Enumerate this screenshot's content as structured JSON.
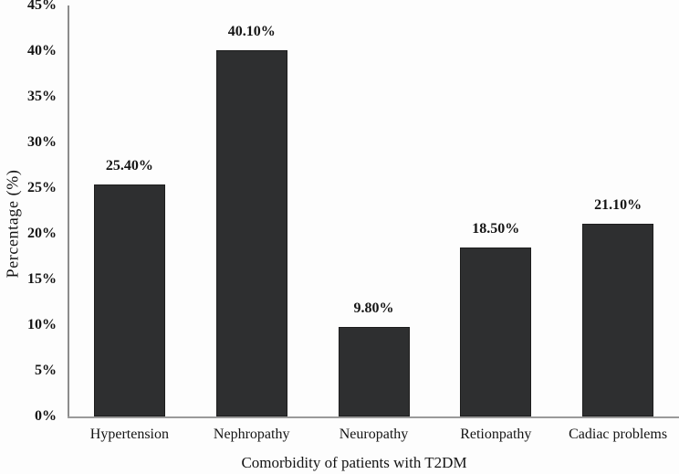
{
  "chart_data": {
    "type": "bar",
    "categories": [
      "Hypertension",
      "Nephropathy",
      "Neuropathy",
      "Retionpathy",
      "Cadiac problems"
    ],
    "values": [
      25.4,
      40.1,
      9.8,
      18.5,
      21.1
    ],
    "data_labels": [
      "25.40%",
      "40.10%",
      "9.80%",
      "18.50%",
      "21.10%"
    ],
    "title": "",
    "xlabel": "Comorbidity of patients with T2DM",
    "ylabel": "Percentage (%)",
    "ylim": [
      0,
      45
    ],
    "ytick_step": 5,
    "ytick_labels": [
      "0%",
      "5%",
      "10%",
      "15%",
      "20%",
      "25%",
      "30%",
      "35%",
      "40%",
      "45%"
    ],
    "grid": false,
    "legend": false,
    "bar_color": "#2e2f30",
    "bar_border_color": "#1d1d1d",
    "axis_color": "#8c8c8c",
    "text_color": "#141414",
    "background_color": "#fdfdfd"
  }
}
